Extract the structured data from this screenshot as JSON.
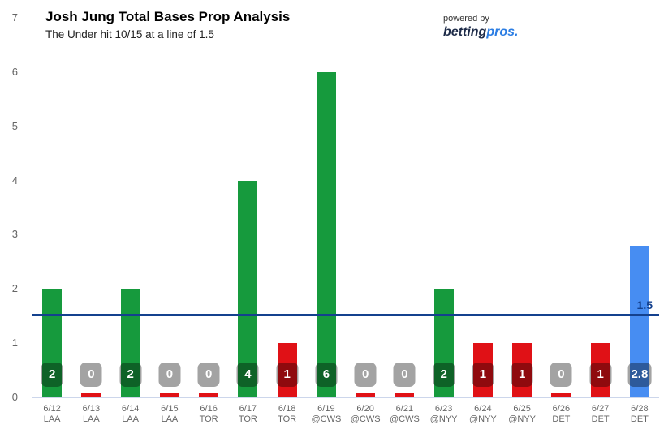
{
  "header": {
    "title": "Josh Jung Total Bases Prop Analysis",
    "subtitle": "The Under hit 10/15 at a line of 1.5"
  },
  "brand": {
    "powered_by": "powered by",
    "name_dark": "betting",
    "name_light": "pros",
    "period": "."
  },
  "chart_data": {
    "type": "bar",
    "title": "Josh Jung Total Bases Prop Analysis",
    "subtitle": "The Under hit 10/15 at a line of 1.5",
    "xlabel": "",
    "ylabel": "",
    "ylim": [
      0,
      7
    ],
    "yticks": [
      0,
      1,
      2,
      3,
      4,
      5,
      6,
      7
    ],
    "grid": false,
    "legend": false,
    "line": {
      "value": 1.5,
      "label": "1.5",
      "color": "#14418e"
    },
    "points": [
      {
        "date": "6/12",
        "opponent": "LAA",
        "value": 2,
        "label": "2",
        "result": "over"
      },
      {
        "date": "6/13",
        "opponent": "LAA",
        "value": 0,
        "label": "0",
        "result": "under"
      },
      {
        "date": "6/14",
        "opponent": "LAA",
        "value": 2,
        "label": "2",
        "result": "over"
      },
      {
        "date": "6/15",
        "opponent": "LAA",
        "value": 0,
        "label": "0",
        "result": "under"
      },
      {
        "date": "6/16",
        "opponent": "TOR",
        "value": 0,
        "label": "0",
        "result": "under"
      },
      {
        "date": "6/17",
        "opponent": "TOR",
        "value": 4,
        "label": "4",
        "result": "over"
      },
      {
        "date": "6/18",
        "opponent": "TOR",
        "value": 1,
        "label": "1",
        "result": "under"
      },
      {
        "date": "6/19",
        "opponent": "@CWS",
        "value": 6,
        "label": "6",
        "result": "over"
      },
      {
        "date": "6/20",
        "opponent": "@CWS",
        "value": 0,
        "label": "0",
        "result": "under"
      },
      {
        "date": "6/21",
        "opponent": "@CWS",
        "value": 0,
        "label": "0",
        "result": "under"
      },
      {
        "date": "6/23",
        "opponent": "@NYY",
        "value": 2,
        "label": "2",
        "result": "over"
      },
      {
        "date": "6/24",
        "opponent": "@NYY",
        "value": 1,
        "label": "1",
        "result": "under"
      },
      {
        "date": "6/25",
        "opponent": "@NYY",
        "value": 1,
        "label": "1",
        "result": "under"
      },
      {
        "date": "6/26",
        "opponent": "DET",
        "value": 0,
        "label": "0",
        "result": "under"
      },
      {
        "date": "6/27",
        "opponent": "DET",
        "value": 1,
        "label": "1",
        "result": "under"
      },
      {
        "date": "6/28",
        "opponent": "DET",
        "value": 2.8,
        "label": "2.8",
        "result": "projection"
      }
    ],
    "colors": {
      "over": "#169a3d",
      "under": "#e01116",
      "projection": "#478df2",
      "axis_line": "#ccd6eb",
      "tick_label": "#666666",
      "line": "#14418e"
    }
  }
}
